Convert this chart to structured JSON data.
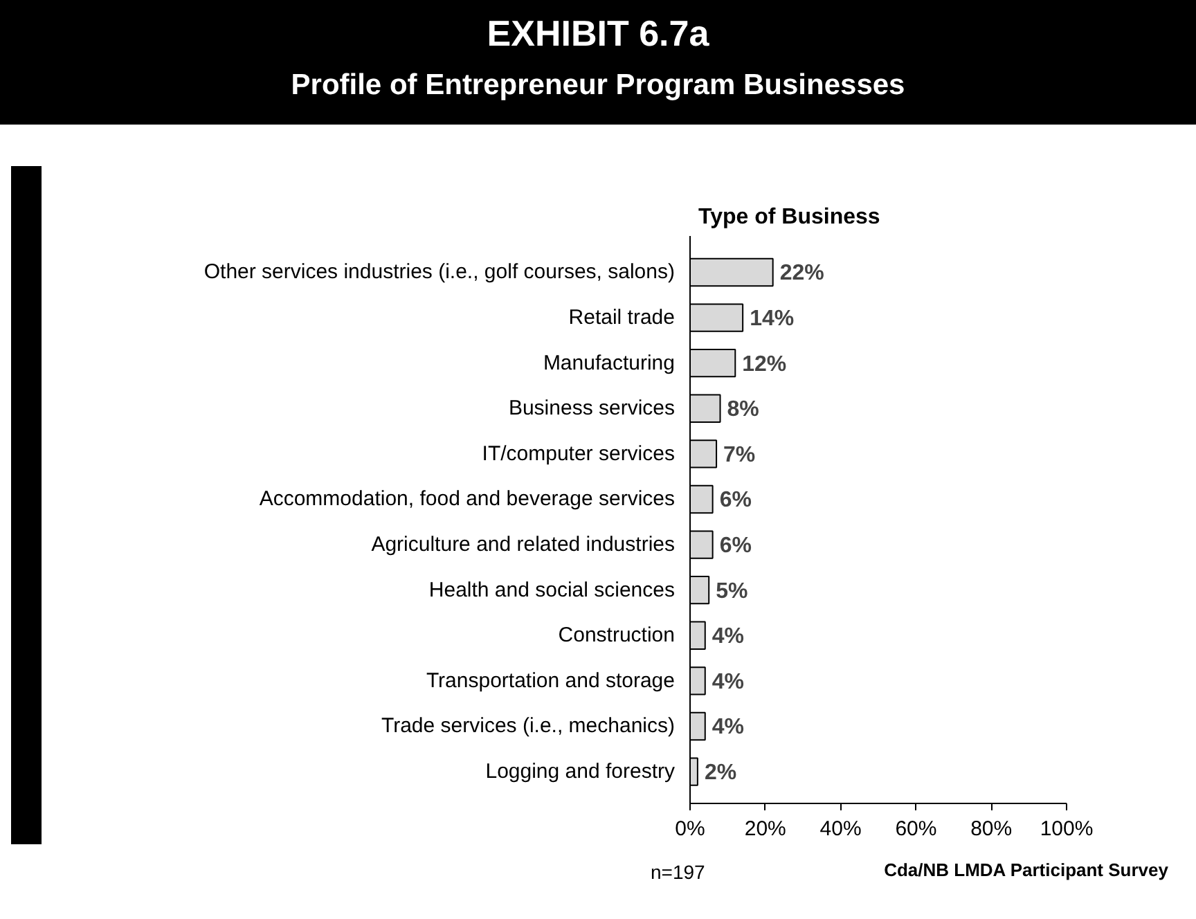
{
  "chart_data": {
    "type": "bar",
    "orientation": "horizontal",
    "title": "EXHIBIT 6.7a",
    "subtitle": "Profile of Entrepreneur Program Businesses",
    "legend_title": "Type of Business",
    "categories": [
      "Other services industries (i.e., golf courses, salons)",
      "Retail trade",
      "Manufacturing",
      "Business services",
      "IT/computer services",
      "Accommodation, food and beverage services",
      "Agriculture and related industries",
      "Health and social sciences",
      "Construction",
      "Transportation and storage",
      "Trade services (i.e., mechanics)",
      "Logging and forestry"
    ],
    "values": [
      22,
      14,
      12,
      8,
      7,
      6,
      6,
      5,
      4,
      4,
      4,
      2
    ],
    "value_labels": [
      "22%",
      "14%",
      "12%",
      "8%",
      "7%",
      "6%",
      "6%",
      "5%",
      "4%",
      "4%",
      "4%",
      "2%"
    ],
    "color": "#d9d9d9",
    "xlim": [
      0,
      100
    ],
    "xticks": [
      {
        "value": 0,
        "label": "0%"
      },
      {
        "value": 20,
        "label": "20%"
      },
      {
        "value": 40,
        "label": "40%"
      },
      {
        "value": 60,
        "label": "60%"
      },
      {
        "value": 80,
        "label": "80%"
      },
      {
        "value": 100,
        "label": "100%"
      }
    ],
    "grid": false,
    "annotations": [
      "n=197",
      "Cda/NB LMDA Participant Survey"
    ]
  }
}
